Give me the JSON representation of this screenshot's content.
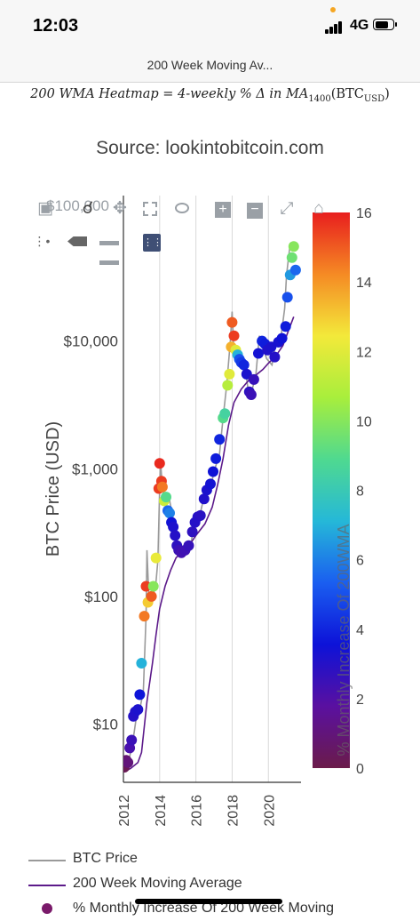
{
  "status_bar": {
    "time": "12:03",
    "network": "4G"
  },
  "browser": {
    "title": "200 Week Moving Av..."
  },
  "page": {
    "formula_text": "200 WMA Heatmap = 4-weekly % Δ in MA",
    "formula_sub": "1400",
    "formula_arg": "(BTC",
    "formula_arg_sub": "USD",
    "formula_close": ")",
    "source": "Source: lookintobitcoin.com"
  },
  "toolbar": {
    "icons": [
      "camera-icon",
      "zoom-icon",
      "pan-icon",
      "box-select-icon",
      "lasso-select-icon",
      "zoom-in-icon",
      "zoom-out-icon",
      "autoscale-icon",
      "reset-axes-icon",
      "spike-lines-icon",
      "hover-closest-icon",
      "hover-compare-icon",
      "plotly-logo-icon"
    ],
    "overlapped_label": "$100,000"
  },
  "legend": {
    "items": [
      {
        "label": "BTC Price",
        "color": "#9a9a9a"
      },
      {
        "label": "200 Week Moving Average",
        "color": "#5c1a8a"
      },
      {
        "label": "% Monthly Increase Of 200 Week Moving",
        "color": "#7a1a6a"
      }
    ]
  },
  "chart_data": {
    "type": "scatter",
    "ylabel": "BTC Price (USD)",
    "y_scale": "log",
    "ylim": [
      3.5,
      100000
    ],
    "xlim": [
      2012.0,
      2021.8
    ],
    "y_ticks": [
      {
        "value": 10,
        "label": "$10"
      },
      {
        "value": 100,
        "label": "$100"
      },
      {
        "value": 1000,
        "label": "$1,000"
      },
      {
        "value": 10000,
        "label": "$10,000"
      }
    ],
    "x_ticks": [
      {
        "value": 2012,
        "label": "2012"
      },
      {
        "value": 2014,
        "label": "2014"
      },
      {
        "value": 2016,
        "label": "2016"
      },
      {
        "value": 2018,
        "label": "2018"
      },
      {
        "value": 2020,
        "label": "2020"
      }
    ],
    "grid": "vertical",
    "colorbar": {
      "title": "% Monthly Increase Of 200WMA",
      "range": [
        0,
        16
      ],
      "ticks": [
        0,
        2,
        4,
        6,
        8,
        10,
        12,
        14,
        16
      ],
      "colorscale": [
        "#6b1b4a",
        "#5a10a0",
        "#0d12d8",
        "#1a5ef0",
        "#25b8d8",
        "#4fd990",
        "#a8ee3c",
        "#f3e93a",
        "#f58a24",
        "#e81e1e"
      ]
    },
    "price_line": {
      "name": "BTC Price",
      "color": "#9a9a9a",
      "points": [
        [
          2012.0,
          5.0
        ],
        [
          2012.3,
          5.2
        ],
        [
          2012.5,
          7
        ],
        [
          2012.7,
          11
        ],
        [
          2012.9,
          13
        ],
        [
          2013.1,
          18
        ],
        [
          2013.25,
          70
        ],
        [
          2013.3,
          230
        ],
        [
          2013.4,
          100
        ],
        [
          2013.6,
          95
        ],
        [
          2013.8,
          130
        ],
        [
          2013.9,
          190
        ],
        [
          2014.0,
          700
        ],
        [
          2014.05,
          1150
        ],
        [
          2014.15,
          700
        ],
        [
          2014.3,
          550
        ],
        [
          2014.5,
          620
        ],
        [
          2014.7,
          430
        ],
        [
          2014.9,
          350
        ],
        [
          2015.0,
          250
        ],
        [
          2015.1,
          230
        ],
        [
          2015.4,
          230
        ],
        [
          2015.7,
          240
        ],
        [
          2015.9,
          380
        ],
        [
          2016.2,
          420
        ],
        [
          2016.5,
          650
        ],
        [
          2016.8,
          700
        ],
        [
          2017.0,
          950
        ],
        [
          2017.3,
          1300
        ],
        [
          2017.5,
          2500
        ],
        [
          2017.7,
          4500
        ],
        [
          2017.9,
          10000
        ],
        [
          2018.0,
          17000
        ],
        [
          2018.1,
          8000
        ],
        [
          2018.3,
          8500
        ],
        [
          2018.5,
          6500
        ],
        [
          2018.7,
          6400
        ],
        [
          2018.9,
          4000
        ],
        [
          2019.0,
          3700
        ],
        [
          2019.3,
          5300
        ],
        [
          2019.5,
          11000
        ],
        [
          2019.7,
          9000
        ],
        [
          2019.9,
          7300
        ],
        [
          2020.2,
          6500
        ],
        [
          2020.4,
          9500
        ],
        [
          2020.7,
          11000
        ],
        [
          2020.9,
          18000
        ],
        [
          2021.0,
          33000
        ],
        [
          2021.2,
          58000
        ],
        [
          2021.35,
          57000
        ]
      ]
    },
    "ma_line": {
      "name": "200 Week Moving Average",
      "color": "#5c1a8a",
      "points": [
        [
          2012.0,
          4.2
        ],
        [
          2012.4,
          4.5
        ],
        [
          2012.8,
          5.0
        ],
        [
          2013.0,
          6
        ],
        [
          2013.3,
          15
        ],
        [
          2013.6,
          30
        ],
        [
          2013.8,
          50
        ],
        [
          2014.0,
          80
        ],
        [
          2014.3,
          120
        ],
        [
          2014.6,
          160
        ],
        [
          2014.9,
          200
        ],
        [
          2015.3,
          230
        ],
        [
          2015.7,
          260
        ],
        [
          2016.0,
          300
        ],
        [
          2016.5,
          370
        ],
        [
          2016.9,
          500
        ],
        [
          2017.2,
          750
        ],
        [
          2017.5,
          1200
        ],
        [
          2017.8,
          2200
        ],
        [
          2018.1,
          3300
        ],
        [
          2018.5,
          4200
        ],
        [
          2018.9,
          4900
        ],
        [
          2019.3,
          5400
        ],
        [
          2019.7,
          6000
        ],
        [
          2020.0,
          6700
        ],
        [
          2020.4,
          7600
        ],
        [
          2020.8,
          9200
        ],
        [
          2021.1,
          12000
        ],
        [
          2021.4,
          15500
        ]
      ]
    },
    "series": [
      {
        "name": "% Monthly Increase Of 200 Week Moving",
        "points": [
          [
            2012.05,
            4.6,
            0.2
          ],
          [
            2012.15,
            5.2,
            0.8
          ],
          [
            2012.25,
            5.0,
            1.0
          ],
          [
            2012.35,
            6.5,
            2.2
          ],
          [
            2012.45,
            7.5,
            2.5
          ],
          [
            2012.55,
            11.5,
            3.0
          ],
          [
            2012.65,
            12.5,
            3.1
          ],
          [
            2012.8,
            13,
            3.2
          ],
          [
            2012.9,
            17,
            3.6
          ],
          [
            2013.0,
            30,
            7.0
          ],
          [
            2013.15,
            70,
            14.5
          ],
          [
            2013.25,
            120,
            15.5
          ],
          [
            2013.35,
            90,
            13.0
          ],
          [
            2013.55,
            100,
            15.0
          ],
          [
            2013.65,
            120,
            10.0
          ],
          [
            2013.8,
            200,
            12.2
          ],
          [
            2013.95,
            700,
            15.5
          ],
          [
            2014.0,
            1100,
            15.8
          ],
          [
            2014.1,
            800,
            15.5
          ],
          [
            2014.15,
            720,
            14.5
          ],
          [
            2014.25,
            560,
            11.5
          ],
          [
            2014.35,
            600,
            9.0
          ],
          [
            2014.45,
            470,
            5.5
          ],
          [
            2014.55,
            450,
            6.0
          ],
          [
            2014.65,
            380,
            3.5
          ],
          [
            2014.75,
            350,
            3.2
          ],
          [
            2014.85,
            300,
            3.0
          ],
          [
            2014.95,
            250,
            2.8
          ],
          [
            2015.05,
            230,
            2.5
          ],
          [
            2015.2,
            220,
            2.3
          ],
          [
            2015.4,
            230,
            2.4
          ],
          [
            2015.6,
            250,
            2.6
          ],
          [
            2015.8,
            320,
            2.8
          ],
          [
            2015.95,
            380,
            3.0
          ],
          [
            2016.1,
            420,
            3.0
          ],
          [
            2016.25,
            430,
            2.9
          ],
          [
            2016.45,
            580,
            3.1
          ],
          [
            2016.6,
            680,
            3.2
          ],
          [
            2016.8,
            760,
            3.4
          ],
          [
            2016.95,
            950,
            3.5
          ],
          [
            2017.1,
            1200,
            3.8
          ],
          [
            2017.3,
            1700,
            4.0
          ],
          [
            2017.5,
            2500,
            9.0
          ],
          [
            2017.6,
            2700,
            8.5
          ],
          [
            2017.75,
            4500,
            11.0
          ],
          [
            2017.85,
            5500,
            12.0
          ],
          [
            2017.95,
            9000,
            13.5
          ],
          [
            2018.0,
            14000,
            15.0
          ],
          [
            2018.1,
            11000,
            15.5
          ],
          [
            2018.2,
            8500,
            12.0
          ],
          [
            2018.3,
            7800,
            7.0
          ],
          [
            2018.4,
            7200,
            5.0
          ],
          [
            2018.5,
            6800,
            4.5
          ],
          [
            2018.65,
            6500,
            4.0
          ],
          [
            2018.8,
            5500,
            3.2
          ],
          [
            2018.95,
            4000,
            2.8
          ],
          [
            2019.05,
            3800,
            2.5
          ],
          [
            2019.2,
            5000,
            2.6
          ],
          [
            2019.45,
            8000,
            3.4
          ],
          [
            2019.65,
            10000,
            4.0
          ],
          [
            2019.8,
            9500,
            3.8
          ],
          [
            2019.95,
            8500,
            3.1
          ],
          [
            2020.15,
            9000,
            3.2
          ],
          [
            2020.35,
            7500,
            3.0
          ],
          [
            2020.55,
            9800,
            3.3
          ],
          [
            2020.75,
            10500,
            3.5
          ],
          [
            2020.95,
            13000,
            3.8
          ],
          [
            2021.05,
            22000,
            5.0
          ],
          [
            2021.2,
            33000,
            6.5
          ],
          [
            2021.3,
            45000,
            9.5
          ],
          [
            2021.4,
            55000,
            10.0
          ],
          [
            2021.5,
            36000,
            5.5
          ]
        ]
      }
    ]
  }
}
